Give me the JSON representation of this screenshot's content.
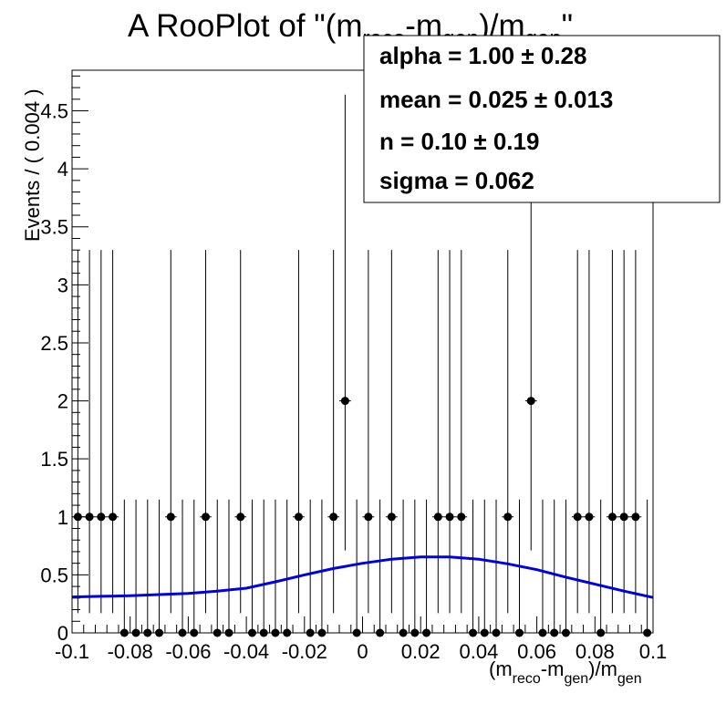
{
  "chart_data": {
    "type": "scatter",
    "title": {
      "prefix": "A RooPlot of \"(m",
      "sub1": "reco",
      "mid": "-m",
      "sub2": "gen",
      "mid2": ")/m",
      "sub3": "gen",
      "suffix": "\""
    },
    "xlabel": {
      "p1": "(m",
      "s1": "reco",
      "p2": "-m",
      "s2": "gen",
      "p3": ")/m",
      "s3": "gen"
    },
    "ylabel": "Events / ( 0.004 )",
    "xlim": [
      -0.1,
      0.1
    ],
    "ylim": [
      0,
      4.85
    ],
    "x_ticks": [
      "-0.1",
      "-0.08",
      "-0.06",
      "-0.04",
      "-0.02",
      "0",
      "0.02",
      "0.04",
      "0.06",
      "0.08",
      "0.1"
    ],
    "y_ticks": [
      "0",
      "0.5",
      "1",
      "1.5",
      "2",
      "2.5",
      "3",
      "3.5",
      "4",
      "4.5"
    ],
    "bin_width": 0.004,
    "bin_centers": [
      -0.098,
      -0.094,
      -0.09,
      -0.086,
      -0.082,
      -0.078,
      -0.074,
      -0.07,
      -0.066,
      -0.062,
      -0.058,
      -0.054,
      -0.05,
      -0.046,
      -0.042,
      -0.038,
      -0.034,
      -0.03,
      -0.026,
      -0.022,
      -0.018,
      -0.014,
      -0.01,
      -0.006,
      -0.002,
      0.002,
      0.006,
      0.01,
      0.014,
      0.018,
      0.022,
      0.026,
      0.03,
      0.034,
      0.038,
      0.042,
      0.046,
      0.05,
      0.054,
      0.058,
      0.062,
      0.066,
      0.07,
      0.074,
      0.078,
      0.082,
      0.086,
      0.09,
      0.094,
      0.098
    ],
    "counts": [
      1,
      1,
      1,
      1,
      0,
      0,
      0,
      0,
      1,
      0,
      0,
      1,
      0,
      0,
      1,
      0,
      0,
      0,
      0,
      1,
      0,
      0,
      1,
      2,
      0,
      1,
      0,
      1,
      0,
      0,
      0,
      1,
      1,
      1,
      0,
      0,
      0,
      1,
      0,
      2,
      0,
      0,
      0,
      1,
      1,
      0,
      1,
      1,
      1,
      0
    ],
    "error_bands": {
      "0": [
        0,
        1.15
      ],
      "1": [
        0.17,
        3.3
      ],
      "2": [
        0.71,
        4.64
      ]
    },
    "fit_curve": {
      "name": "fit",
      "color": "#0000e0",
      "x": [
        -0.1,
        -0.09,
        -0.08,
        -0.07,
        -0.06,
        -0.05,
        -0.04,
        -0.03,
        -0.02,
        -0.01,
        0.0,
        0.01,
        0.02,
        0.03,
        0.04,
        0.05,
        0.06,
        0.07,
        0.08,
        0.09,
        0.1
      ],
      "y": [
        0.31,
        0.315,
        0.32,
        0.33,
        0.34,
        0.36,
        0.385,
        0.44,
        0.5,
        0.555,
        0.6,
        0.635,
        0.655,
        0.655,
        0.635,
        0.595,
        0.545,
        0.48,
        0.42,
        0.36,
        0.305
      ]
    },
    "grid": false,
    "legend": "none"
  },
  "stats_box": {
    "placement": "top-right",
    "lines": [
      "alpha =  1.00 ± 0.28",
      "mean =  0.025 ± 0.013",
      "n =  0.10 ± 0.19",
      "sigma =  0.062"
    ]
  },
  "colors": {
    "curve": "#0000e0",
    "points": "#000000",
    "frame": "#000000"
  }
}
